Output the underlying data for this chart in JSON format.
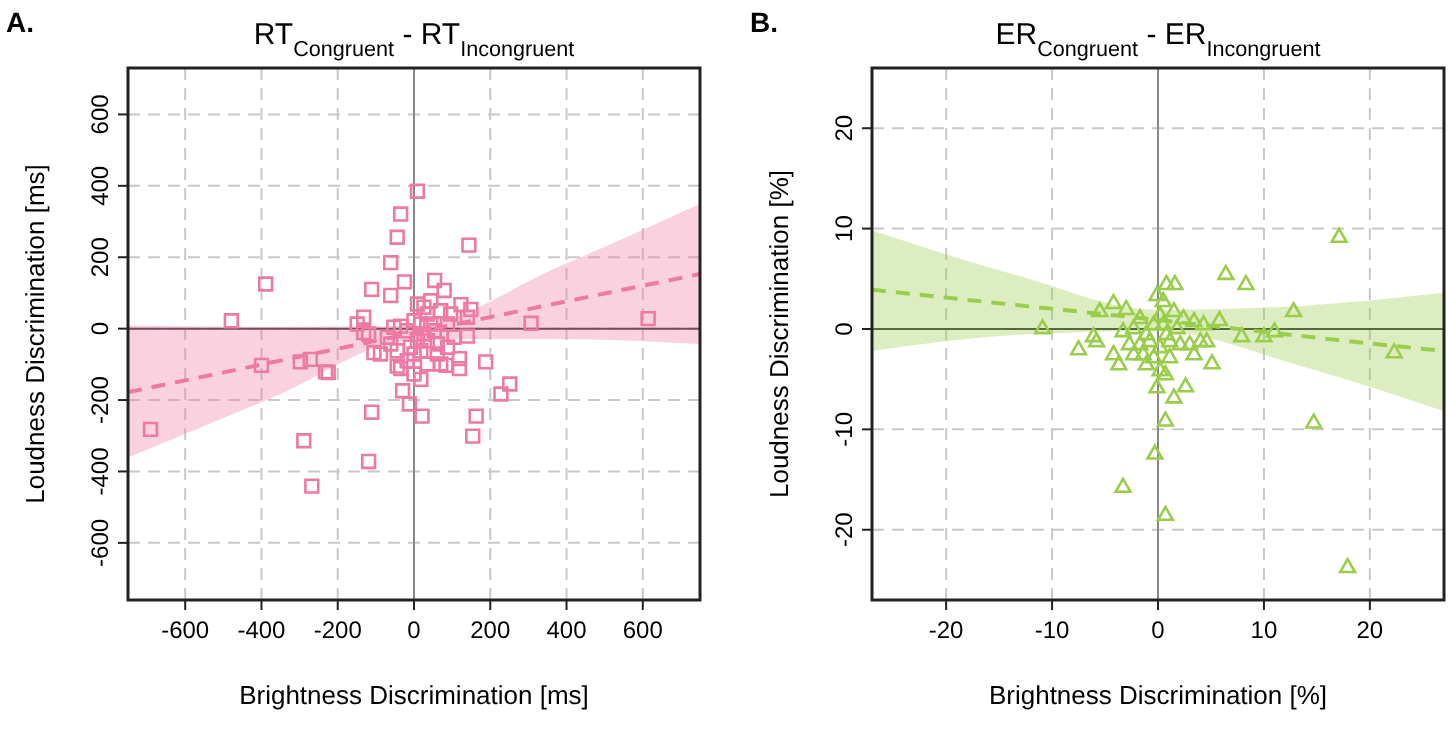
{
  "chart_data": [
    {
      "type": "scatter",
      "title": "RT$_{Congruent}$ - RT$_{Incongruent}$",
      "xlabel": "Brightness Discrimination [ms]",
      "ylabel": "Loudness Discrimination [ms]",
      "annotations": [
        "A."
      ],
      "xlim": [
        -750,
        750
      ],
      "ylim": [
        -760,
        730
      ],
      "xticks": [
        -600,
        -400,
        -200,
        0,
        200,
        400,
        600
      ],
      "yticks": [
        -600,
        -400,
        -200,
        0,
        200,
        400,
        600
      ],
      "grid": true,
      "ref_lines": [
        {
          "axis": "y",
          "value": 0,
          "color": "#333333"
        },
        {
          "axis": "x",
          "value": 0,
          "color": "#888888"
        }
      ],
      "series": [
        {
          "type": "line",
          "color": "#ee7aa4",
          "line_style": "dashed",
          "marker": "none",
          "x": [
            -750,
            -375,
            0,
            375,
            750
          ],
          "values": [
            -178,
            -95,
            -12,
            71,
            153
          ],
          "lower": [
            -361,
            -195,
            -32,
            -29,
            -43
          ],
          "upper": [
            9,
            5,
            8,
            171,
            350
          ]
        },
        {
          "type": "scatter",
          "color": "#ee7aa4",
          "marker": "square",
          "x": [
            9,
            -35,
            -44,
            144,
            -61,
            -389,
            -25,
            -111,
            -61,
            54,
            79,
            -479,
            614,
            307,
            -149,
            -132,
            149,
            123,
            140,
            140,
            -400,
            -298,
            -272,
            -232,
            -225,
            -691,
            -289,
            -268,
            -119,
            -111,
            -30,
            -12,
            21,
            188,
            228,
            251,
            163,
            154,
            70,
            84,
            119,
            119,
            -44,
            -44,
            -35,
            35,
            0,
            18,
            -105,
            -88,
            -119,
            -132,
            -53,
            -35,
            -18,
            0,
            18,
            35,
            44,
            26,
            9,
            70,
            96,
            88,
            53,
            26,
            9,
            -9,
            35,
            61,
            88,
            105,
            0,
            -18,
            61,
            -70,
            -61,
            18,
            44
          ],
          "values": [
            385,
            321,
            256,
            234,
            185,
            125,
            131,
            110,
            93,
            135,
            107,
            22,
            28,
            15,
            13,
            32,
            54,
            67,
            32,
            -21,
            -103,
            -93,
            -86,
            -121,
            -123,
            -282,
            -314,
            -441,
            -372,
            -234,
            -174,
            -211,
            -245,
            -93,
            -183,
            -155,
            -245,
            -301,
            -99,
            -103,
            -112,
            -84,
            -62,
            -105,
            -112,
            -99,
            -127,
            -142,
            -67,
            -71,
            -15,
            -11,
            4,
            7,
            -6,
            22,
            13,
            41,
            78,
            60,
            69,
            50,
            41,
            13,
            -6,
            -15,
            -34,
            -52,
            -34,
            -43,
            -52,
            -24,
            -71,
            -90,
            -71,
            -24,
            -43,
            -62,
            13
          ]
        }
      ]
    },
    {
      "type": "scatter",
      "title": "ER$_{Congruent}$ - ER$_{Incongruent}$",
      "xlabel": "Brightness Discrimination [%]",
      "ylabel": "Loudness Discrimination [%]",
      "annotations": [
        "B."
      ],
      "xlim": [
        -27,
        27
      ],
      "ylim": [
        -27,
        26
      ],
      "xticks": [
        -20,
        -10,
        0,
        10,
        20
      ],
      "yticks": [
        -20,
        -10,
        0,
        10,
        20
      ],
      "grid": true,
      "ref_lines": [
        {
          "axis": "y",
          "value": 0,
          "color": "#333333"
        },
        {
          "axis": "x",
          "value": 0,
          "color": "#888888"
        }
      ],
      "series": [
        {
          "type": "line",
          "color": "#9acd4c",
          "line_style": "dashed",
          "marker": "none",
          "x": [
            -27,
            -13.5,
            0,
            13.5,
            27
          ],
          "values": [
            3.9,
            2.4,
            0.9,
            -0.7,
            -2.2
          ],
          "lower": [
            -2.2,
            -0.6,
            -0.2,
            -3.7,
            -8.2
          ],
          "upper": [
            9.8,
            5.4,
            1.9,
            2.3,
            3.6
          ]
        },
        {
          "type": "scatter",
          "color": "#9acd4c",
          "marker": "triangle",
          "x": [
            17.1,
            6.4,
            8.3,
            0.8,
            1.6,
            12.8,
            5.8,
            -10.9,
            -7.5,
            22.3,
            7.9,
            10,
            11,
            14.7,
            0.7,
            -0.3,
            -3.3,
            0.7,
            17.9,
            2.6,
            1.5,
            5.1,
            -4.2,
            -5.5,
            -3,
            -6.1,
            -5.8,
            -4.2,
            -3.7,
            -2.3,
            -1.7,
            -1.1,
            -0.4,
            -0.1,
            0.2,
            0.5,
            0.8,
            1.1,
            0.2,
            -0.4,
            0.2,
            -0.1,
            -1.1,
            2.1,
            3.4,
            4,
            4.3,
            3.4,
            2.4,
            1.5,
            0.5,
            -1.7,
            -2.3,
            -3.3,
            -0.8,
            -1.4,
            1.1,
            1.8,
            -2.7,
            3,
            4.6,
            0.7
          ],
          "values": [
            9.2,
            5.5,
            4.5,
            4.5,
            4.5,
            1.8,
            0.9,
            0.1,
            -2,
            -2.3,
            -0.7,
            -0.7,
            -0.2,
            -9.3,
            -9.1,
            -12.4,
            -15.7,
            -18.5,
            -23.7,
            -5.7,
            -6.8,
            -3.4,
            2.6,
            1.8,
            2,
            -0.7,
            -1.2,
            -2.5,
            -3.5,
            -2.5,
            -1.5,
            -0.5,
            0.5,
            3.4,
            1.4,
            0.5,
            -0.5,
            -1.2,
            -1.8,
            -2.8,
            -4.1,
            -5.8,
            -3.5,
            -1.5,
            -2.5,
            -1.2,
            0.5,
            0.8,
            1.1,
            1.8,
            2.8,
            1.1,
            0.1,
            -0.2,
            -1.2,
            -2.5,
            -2.8,
            0.1,
            -1.5,
            -1.5,
            -1.2,
            -4.5
          ]
        }
      ]
    }
  ]
}
